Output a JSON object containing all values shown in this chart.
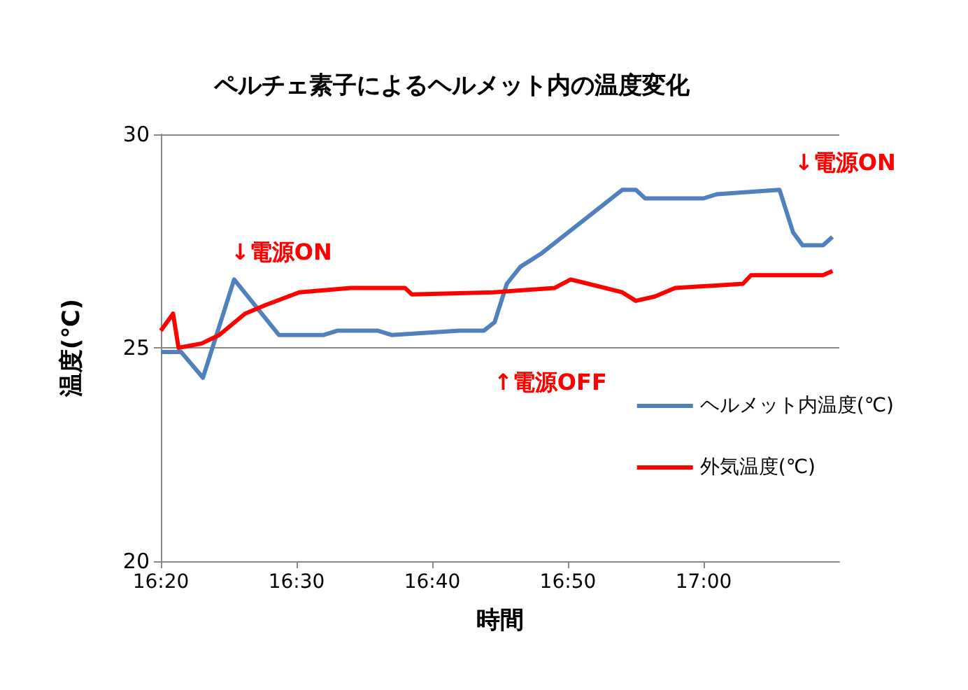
{
  "chart_data": {
    "type": "line",
    "title": "ペルチェ素子によるヘルメット内の温度変化",
    "xlabel": "時間",
    "ylabel": "温度(℃)",
    "xlim": [
      16.3333,
      17.1667
    ],
    "xticks": [
      {
        "value": 16.3333,
        "label": "16:20"
      },
      {
        "value": 16.5,
        "label": "16:30"
      },
      {
        "value": 16.6667,
        "label": "16:40"
      },
      {
        "value": 16.8333,
        "label": "16:50"
      },
      {
        "value": 17.0,
        "label": "17:00"
      }
    ],
    "ylim": [
      20,
      30
    ],
    "yticks": [
      20,
      25,
      30
    ],
    "grid": "y",
    "legend": "right",
    "marker": "none",
    "line_style": "solid",
    "series": [
      {
        "name": "ヘルメット内温度(℃)",
        "color": "#4f81bd",
        "x": [
          16.3333,
          16.3583,
          16.385,
          16.4233,
          16.4783,
          16.5333,
          16.55,
          16.6,
          16.6167,
          16.7,
          16.73,
          16.7433,
          16.7583,
          16.775,
          16.8,
          16.8333,
          16.8667,
          16.9,
          16.9167,
          16.9283,
          17.0,
          17.0167,
          17.0933,
          17.11,
          17.1217,
          17.1467,
          17.1583
        ],
        "values": [
          24.9,
          24.9,
          24.3,
          26.6,
          25.3,
          25.3,
          25.4,
          25.4,
          25.3,
          25.4,
          25.4,
          25.6,
          26.5,
          26.9,
          27.2,
          27.7,
          28.2,
          28.7,
          28.7,
          28.5,
          28.5,
          28.6,
          28.7,
          27.7,
          27.4,
          27.4,
          27.6
        ]
      },
      {
        "name": "外気温度(℃)",
        "color": "#ff0000",
        "x": [
          16.3333,
          16.3483,
          16.355,
          16.3833,
          16.405,
          16.4367,
          16.4617,
          16.5033,
          16.5667,
          16.6333,
          16.6417,
          16.7417,
          16.8167,
          16.8367,
          16.8583,
          16.9,
          16.9167,
          16.94,
          16.965,
          17.0483,
          17.0583,
          17.1467,
          17.1583
        ],
        "values": [
          25.4,
          25.8,
          25.0,
          25.1,
          25.3,
          25.8,
          26.0,
          26.3,
          26.4,
          26.4,
          26.25,
          26.3,
          26.4,
          26.6,
          26.5,
          26.3,
          26.1,
          26.2,
          26.4,
          26.5,
          26.7,
          26.7,
          26.8
        ]
      }
    ],
    "annotations": [
      "↓電源ON",
      "↑電源OFF",
      "↓電源ON"
    ]
  }
}
